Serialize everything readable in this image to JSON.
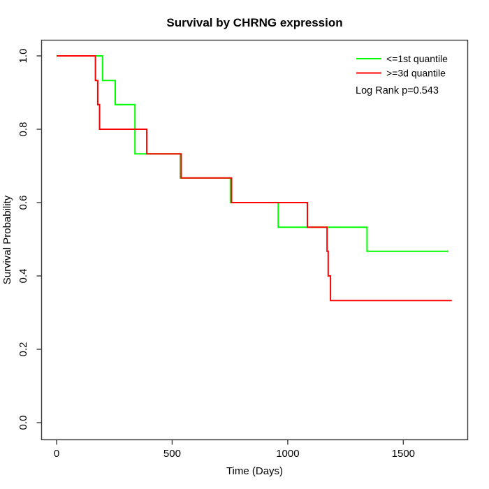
{
  "chart_data": {
    "type": "line",
    "subtype": "kaplan-meier-step",
    "title": "Survival by CHRNG expression",
    "xlabel": "Time (Days)",
    "ylabel": "Survival Probability",
    "xlim": [
      0,
      1780
    ],
    "ylim": [
      0.0,
      1.0
    ],
    "x_ticks": [
      0,
      500,
      1000,
      1500
    ],
    "y_ticks": [
      0.0,
      0.2,
      0.4,
      0.6,
      0.8,
      1.0
    ],
    "grid": "off",
    "legend_position": "top-right-inside",
    "annotation": "Log Rank p=0.543",
    "series": [
      {
        "name": "<=1st quantile",
        "color": "#00ff00",
        "steps": [
          [
            0,
            1.0
          ],
          [
            199,
            0.933
          ],
          [
            254,
            0.867
          ],
          [
            339,
            0.733
          ],
          [
            535,
            0.667
          ],
          [
            752,
            0.6
          ],
          [
            959,
            0.533
          ],
          [
            1343,
            0.467
          ]
        ],
        "end_time": 1695
      },
      {
        "name": ">=3d quantile",
        "color": "#ff0000",
        "steps": [
          [
            0,
            1.0
          ],
          [
            168,
            0.933
          ],
          [
            178,
            0.867
          ],
          [
            186,
            0.8
          ],
          [
            390,
            0.733
          ],
          [
            539,
            0.667
          ],
          [
            757,
            0.6
          ],
          [
            1085,
            0.533
          ],
          [
            1170,
            0.467
          ],
          [
            1175,
            0.4
          ],
          [
            1185,
            0.333
          ]
        ],
        "end_time": 1710
      }
    ]
  }
}
